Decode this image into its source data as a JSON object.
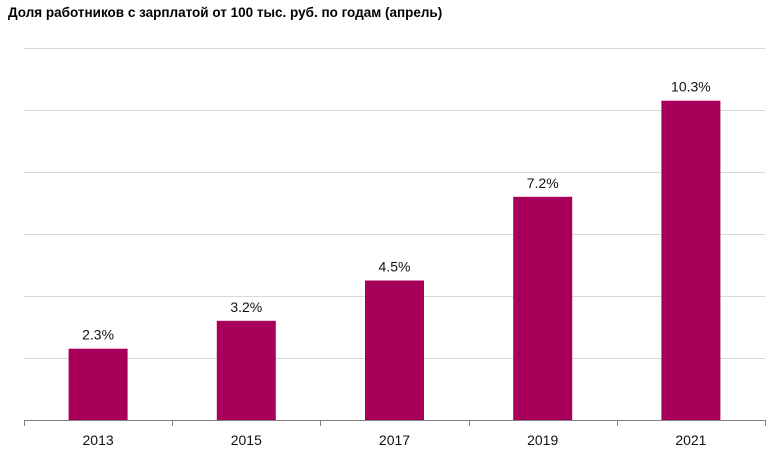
{
  "title": "Доля работников с зарплатой от 100 тыс. руб. по годам (апрель)",
  "chart_data": {
    "type": "bar",
    "title": "Доля работников с зарплатой от 100 тыс. руб. по годам (апрель)",
    "categories": [
      "2013",
      "2015",
      "2017",
      "2019",
      "2021"
    ],
    "values": [
      2.3,
      3.2,
      4.5,
      7.2,
      10.3
    ],
    "value_labels": [
      "2.3%",
      "3.2%",
      "4.5%",
      "7.2%",
      "10.3%"
    ],
    "xlabel": "",
    "ylabel": "",
    "ylim": [
      0,
      12
    ],
    "grid": true,
    "y_tick_labels_visible": false,
    "legend": "none",
    "colors": {
      "bar": "#A8005A",
      "grid": "#d9d9d9",
      "axis": "#808080"
    }
  }
}
